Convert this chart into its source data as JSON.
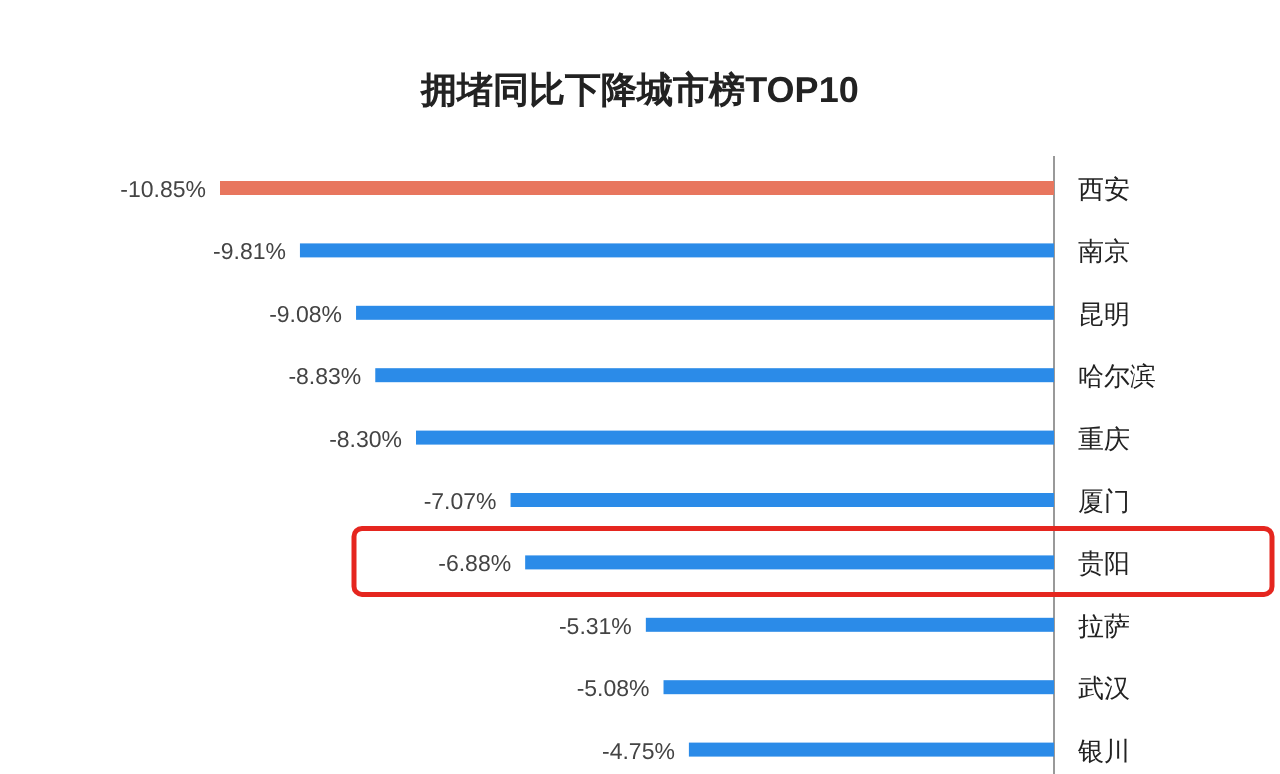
{
  "chart_data": {
    "type": "bar",
    "orientation": "horizontal",
    "title": "拥堵同比下降城市榜TOP10",
    "categories": [
      "西安",
      "南京",
      "昆明",
      "哈尔滨",
      "重庆",
      "厦门",
      "贵阳",
      "拉萨",
      "武汉",
      "银川"
    ],
    "values": [
      -10.85,
      -9.81,
      -9.08,
      -8.83,
      -8.3,
      -7.07,
      -6.88,
      -5.31,
      -5.08,
      -4.75
    ],
    "value_labels": [
      "-10.85%",
      "-9.81%",
      "-9.08%",
      "-8.83%",
      "-8.30%",
      "-7.07%",
      "-6.88%",
      "-5.31%",
      "-5.08%",
      "-4.75%"
    ],
    "colors": [
      "#e8765e",
      "#2b8be8",
      "#2b8be8",
      "#2b8be8",
      "#2b8be8",
      "#2b8be8",
      "#2b8be8",
      "#2b8be8",
      "#2b8be8",
      "#2b8be8"
    ]
  }
}
